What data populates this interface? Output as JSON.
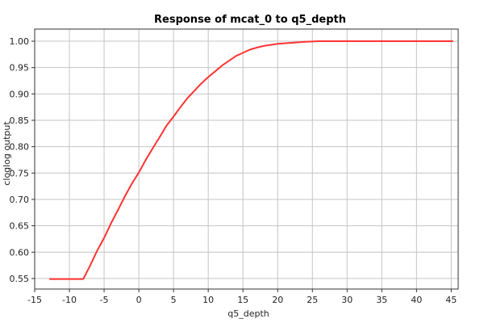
{
  "chart_data": {
    "type": "line",
    "title": "Response of mcat_0 to q5_depth",
    "xlabel": "q5_depth",
    "ylabel": "cloglog output",
    "xlim": [
      -15,
      46
    ],
    "ylim": [
      0.53,
      1.023
    ],
    "xticks": [
      -15,
      -10,
      -5,
      0,
      5,
      10,
      15,
      20,
      25,
      30,
      35,
      40,
      45
    ],
    "xtick_labels": [
      "-15",
      "-10",
      "-5",
      "0",
      "5",
      "10",
      "15",
      "20",
      "25",
      "30",
      "35",
      "40",
      "45"
    ],
    "yticks": [
      0.55,
      0.6,
      0.65,
      0.7,
      0.75,
      0.8,
      0.85,
      0.9,
      0.95,
      1.0
    ],
    "ytick_labels": [
      "0.55",
      "0.60",
      "0.65",
      "0.70",
      "0.75",
      "0.80",
      "0.85",
      "0.90",
      "0.95",
      "1.00"
    ],
    "grid": true,
    "legend": "none",
    "series": [
      {
        "color": "#ff3333",
        "x": [
          -12.8,
          -8.0,
          -7.0,
          -6.0,
          -5.0,
          -4.0,
          -3.0,
          -2.0,
          -1.0,
          0.0,
          1.0,
          2.0,
          3.0,
          4.0,
          5.0,
          6.0,
          7.0,
          8.0,
          9.0,
          10.0,
          11.0,
          12.0,
          13.0,
          14.0,
          15.0,
          16.0,
          17.0,
          18.0,
          19.0,
          20.0,
          22.0,
          24.0,
          26.0,
          28.0,
          30.0,
          35.0,
          40.0,
          45.2
        ],
        "y": [
          0.549,
          0.549,
          0.575,
          0.603,
          0.627,
          0.655,
          0.68,
          0.706,
          0.73,
          0.751,
          0.775,
          0.797,
          0.818,
          0.84,
          0.857,
          0.875,
          0.892,
          0.906,
          0.92,
          0.932,
          0.943,
          0.954,
          0.963,
          0.972,
          0.978,
          0.984,
          0.988,
          0.991,
          0.993,
          0.995,
          0.997,
          0.999,
          1.0,
          1.0,
          1.0,
          1.0,
          1.0,
          1.0
        ]
      }
    ]
  }
}
